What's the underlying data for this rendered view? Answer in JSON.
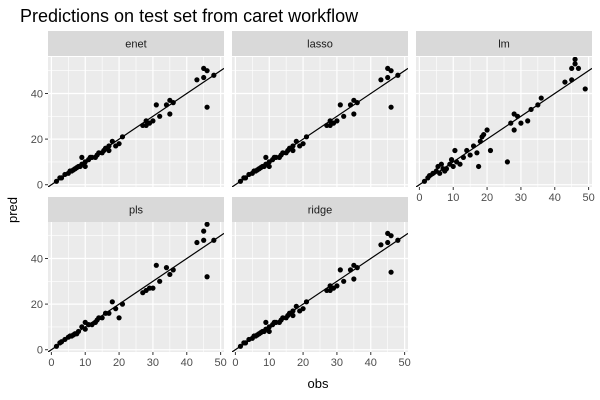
{
  "title": "Predictions on test set from caret workflow",
  "chart_data": {
    "type": "scatter",
    "title": "Predictions on test set from caret workflow",
    "xlabel": "obs",
    "ylabel": "pred",
    "xlim": [
      -1,
      51
    ],
    "ylim": [
      -1,
      56
    ],
    "xticks": [
      0,
      10,
      20,
      30,
      40,
      50
    ],
    "yticks": [
      0,
      20,
      40
    ],
    "reference_line": {
      "slope": 1,
      "intercept": 0
    },
    "panel_background": "#ebebeb",
    "strip_background": "#d9d9d9",
    "grid_color": "#ffffff",
    "point_color": "#000000",
    "panels": [
      {
        "name": "enet",
        "points": [
          [
            1.5,
            1.5
          ],
          [
            2.5,
            3
          ],
          [
            3,
            3
          ],
          [
            4,
            4.5
          ],
          [
            5,
            5
          ],
          [
            5.5,
            6
          ],
          [
            6,
            6
          ],
          [
            6.5,
            6.5
          ],
          [
            7,
            7
          ],
          [
            7.5,
            7.5
          ],
          [
            8,
            8
          ],
          [
            8.5,
            8
          ],
          [
            9,
            9
          ],
          [
            9,
            12
          ],
          [
            10,
            10
          ],
          [
            10,
            8
          ],
          [
            11,
            11
          ],
          [
            11.5,
            12
          ],
          [
            12,
            12
          ],
          [
            13,
            12
          ],
          [
            13.5,
            13
          ],
          [
            14,
            14
          ],
          [
            15,
            14
          ],
          [
            15.5,
            15
          ],
          [
            16,
            16
          ],
          [
            17,
            17
          ],
          [
            17,
            15
          ],
          [
            18,
            19
          ],
          [
            19,
            17
          ],
          [
            20,
            18
          ],
          [
            21,
            21
          ],
          [
            27,
            26
          ],
          [
            28,
            28
          ],
          [
            28,
            26
          ],
          [
            29,
            27
          ],
          [
            30,
            28
          ],
          [
            31,
            35
          ],
          [
            32,
            30
          ],
          [
            34,
            35
          ],
          [
            35,
            37
          ],
          [
            35,
            31
          ],
          [
            36,
            36
          ],
          [
            43,
            46
          ],
          [
            45,
            47
          ],
          [
            45,
            51
          ],
          [
            46,
            50
          ],
          [
            46,
            34
          ],
          [
            48,
            48
          ]
        ]
      },
      {
        "name": "lasso",
        "points": [
          [
            1.5,
            1.5
          ],
          [
            2.5,
            3
          ],
          [
            3,
            3
          ],
          [
            4,
            4.5
          ],
          [
            5,
            5
          ],
          [
            5.5,
            6
          ],
          [
            6,
            6
          ],
          [
            6.5,
            6.5
          ],
          [
            7,
            7
          ],
          [
            7.5,
            7.5
          ],
          [
            8,
            8
          ],
          [
            8.5,
            8
          ],
          [
            9,
            9
          ],
          [
            9,
            12
          ],
          [
            10,
            10
          ],
          [
            10,
            8
          ],
          [
            11,
            11
          ],
          [
            11.5,
            12
          ],
          [
            12,
            12
          ],
          [
            13,
            12
          ],
          [
            13.5,
            13
          ],
          [
            14,
            14
          ],
          [
            15,
            14
          ],
          [
            15.5,
            15
          ],
          [
            16,
            16
          ],
          [
            17,
            17
          ],
          [
            17,
            15
          ],
          [
            18,
            19
          ],
          [
            19,
            17
          ],
          [
            20,
            18
          ],
          [
            21,
            21
          ],
          [
            27,
            26
          ],
          [
            28,
            28
          ],
          [
            28,
            26
          ],
          [
            29,
            27
          ],
          [
            30,
            28
          ],
          [
            31,
            35
          ],
          [
            32,
            30
          ],
          [
            34,
            35
          ],
          [
            35,
            37
          ],
          [
            35,
            31
          ],
          [
            36,
            36
          ],
          [
            43,
            46
          ],
          [
            45,
            47
          ],
          [
            45,
            51
          ],
          [
            46,
            50
          ],
          [
            46,
            34
          ],
          [
            48,
            48
          ]
        ]
      },
      {
        "name": "lm",
        "points": [
          [
            1.5,
            1.5
          ],
          [
            2.5,
            3
          ],
          [
            3,
            4
          ],
          [
            4,
            5
          ],
          [
            5,
            6
          ],
          [
            5.5,
            8
          ],
          [
            6,
            5
          ],
          [
            6.5,
            9
          ],
          [
            7,
            7
          ],
          [
            7.5,
            6
          ],
          [
            8,
            7
          ],
          [
            9,
            9
          ],
          [
            9.5,
            11
          ],
          [
            10,
            8
          ],
          [
            10.5,
            15
          ],
          [
            11,
            10
          ],
          [
            12,
            9
          ],
          [
            13,
            12
          ],
          [
            14,
            15
          ],
          [
            15,
            13
          ],
          [
            16,
            17
          ],
          [
            17,
            14
          ],
          [
            17.5,
            8
          ],
          [
            18,
            19
          ],
          [
            18.5,
            21
          ],
          [
            19,
            22
          ],
          [
            20,
            24
          ],
          [
            21,
            15
          ],
          [
            26,
            10
          ],
          [
            27,
            27
          ],
          [
            28,
            31
          ],
          [
            28,
            24
          ],
          [
            29,
            30
          ],
          [
            30,
            27
          ],
          [
            32,
            28
          ],
          [
            33,
            33
          ],
          [
            35,
            35
          ],
          [
            36,
            38
          ],
          [
            43,
            45
          ],
          [
            45,
            46
          ],
          [
            45,
            51
          ],
          [
            46,
            53
          ],
          [
            46,
            55
          ],
          [
            47,
            51
          ],
          [
            49,
            42
          ]
        ]
      },
      {
        "name": "pls",
        "points": [
          [
            1.5,
            1.5
          ],
          [
            2.5,
            3
          ],
          [
            3,
            3.5
          ],
          [
            4,
            4.5
          ],
          [
            5,
            5.5
          ],
          [
            5.5,
            6
          ],
          [
            6,
            6
          ],
          [
            6.5,
            6.5
          ],
          [
            7,
            7
          ],
          [
            7.5,
            7
          ],
          [
            8,
            8
          ],
          [
            9,
            10
          ],
          [
            10,
            9
          ],
          [
            10,
            12
          ],
          [
            11,
            11
          ],
          [
            12,
            11
          ],
          [
            13,
            12
          ],
          [
            13.5,
            13
          ],
          [
            14,
            14
          ],
          [
            15,
            14
          ],
          [
            16,
            16
          ],
          [
            17,
            16
          ],
          [
            18,
            21
          ],
          [
            19,
            18
          ],
          [
            20,
            14
          ],
          [
            21,
            20
          ],
          [
            27,
            25
          ],
          [
            28,
            26
          ],
          [
            29,
            27
          ],
          [
            30,
            27
          ],
          [
            31,
            37
          ],
          [
            32,
            30
          ],
          [
            34,
            36
          ],
          [
            35,
            33
          ],
          [
            36,
            35
          ],
          [
            43,
            47
          ],
          [
            45,
            48
          ],
          [
            45,
            52
          ],
          [
            46,
            55
          ],
          [
            46,
            32
          ],
          [
            48,
            48
          ]
        ]
      },
      {
        "name": "ridge",
        "points": [
          [
            1.5,
            1.5
          ],
          [
            2.5,
            3
          ],
          [
            3,
            3
          ],
          [
            4,
            4.5
          ],
          [
            5,
            5
          ],
          [
            5.5,
            6
          ],
          [
            6,
            6
          ],
          [
            6.5,
            6.5
          ],
          [
            7,
            7
          ],
          [
            7.5,
            7.5
          ],
          [
            8,
            8
          ],
          [
            8.5,
            8
          ],
          [
            9,
            9
          ],
          [
            9,
            12
          ],
          [
            10,
            10
          ],
          [
            10,
            8
          ],
          [
            11,
            11
          ],
          [
            11.5,
            12
          ],
          [
            12,
            12
          ],
          [
            13,
            12
          ],
          [
            13.5,
            13
          ],
          [
            14,
            14
          ],
          [
            15,
            14
          ],
          [
            15.5,
            15
          ],
          [
            16,
            16
          ],
          [
            17,
            17
          ],
          [
            17,
            15
          ],
          [
            18,
            19
          ],
          [
            19,
            17
          ],
          [
            20,
            18
          ],
          [
            21,
            21
          ],
          [
            27,
            26
          ],
          [
            28,
            28
          ],
          [
            28,
            26
          ],
          [
            29,
            27
          ],
          [
            30,
            28
          ],
          [
            31,
            35
          ],
          [
            32,
            30
          ],
          [
            34,
            35
          ],
          [
            35,
            37
          ],
          [
            35,
            31
          ],
          [
            36,
            36
          ],
          [
            43,
            46
          ],
          [
            45,
            47
          ],
          [
            45,
            51
          ],
          [
            46,
            50
          ],
          [
            46,
            34
          ],
          [
            48,
            48
          ]
        ]
      }
    ]
  }
}
